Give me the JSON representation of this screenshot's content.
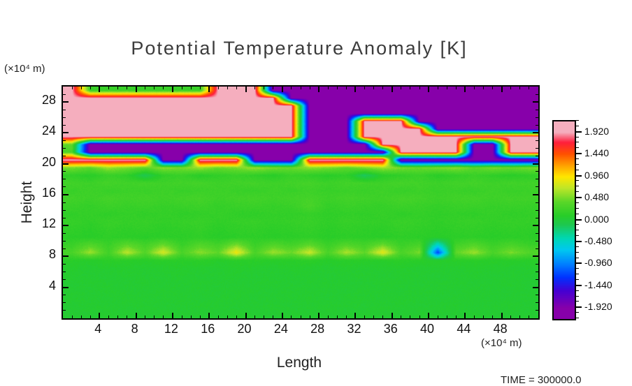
{
  "title": "Potential Temperature Anomaly [K]",
  "time_label": "TIME = 300000.0",
  "axes": {
    "x_label": "Length",
    "x_unit": "(×10⁴ m)",
    "y_label": "Height",
    "y_unit": "(×10⁴ m)",
    "x_ticks": [
      4,
      8,
      12,
      16,
      20,
      24,
      28,
      32,
      36,
      40,
      44,
      48
    ],
    "y_ticks": [
      4,
      8,
      12,
      16,
      20,
      24,
      28
    ],
    "x_range": [
      0,
      52
    ],
    "y_range": [
      0,
      30
    ]
  },
  "colorbar": {
    "labels": [
      "1.920",
      "1.440",
      "0.960",
      "0.480",
      "0.000",
      "-0.480",
      "-0.960",
      "-1.440",
      "-1.920"
    ],
    "values": [
      1.92,
      1.44,
      0.96,
      0.48,
      0.0,
      -0.48,
      -0.96,
      -1.44,
      -1.92
    ],
    "bar_range": [
      -2.16,
      2.16
    ]
  },
  "colors": {
    "background": "#ffffff",
    "frame": "#000000",
    "title_text": "#3c3c3c",
    "stops": [
      {
        "v": -1.92,
        "c": "#8700AA"
      },
      {
        "v": -1.55,
        "c": "#4600D2"
      },
      {
        "v": -1.25,
        "c": "#0032FF"
      },
      {
        "v": -0.95,
        "c": "#0082FF"
      },
      {
        "v": -0.65,
        "c": "#00C8F0"
      },
      {
        "v": -0.4,
        "c": "#00D7B4"
      },
      {
        "v": -0.1,
        "c": "#1EC850"
      },
      {
        "v": 0.1,
        "c": "#28CD28"
      },
      {
        "v": 0.4,
        "c": "#5AD728"
      },
      {
        "v": 0.7,
        "c": "#BEE628"
      },
      {
        "v": 0.95,
        "c": "#FFE600"
      },
      {
        "v": 1.2,
        "c": "#FFA000"
      },
      {
        "v": 1.45,
        "c": "#FF5000"
      },
      {
        "v": 1.7,
        "c": "#FF1E3C"
      },
      {
        "v": 1.92,
        "c": "#F5AEBE"
      }
    ]
  },
  "chart_data": {
    "type": "heatmap",
    "title": "Potential Temperature Anomaly [K]",
    "xlabel": "Length (×10⁴ m)",
    "ylabel": "Height (×10⁴ m)",
    "x_range": [
      0,
      52
    ],
    "y_range": [
      0,
      30
    ],
    "value_range": [
      -1.92,
      1.92
    ],
    "legend_position": "right-colorbar",
    "grid_rows_bottom_to_top": true,
    "values": [
      [
        0.05,
        0.04,
        0.06,
        0.05,
        0.04,
        0.06,
        0.05,
        0.05,
        0.04,
        0.06,
        0.05,
        0.04,
        0.06,
        0.05,
        0.05,
        0.04,
        0.06,
        0.05,
        0.04,
        0.06,
        0.05,
        0.04,
        0.06,
        0.05,
        0.04,
        0.05
      ],
      [
        0.04,
        0.06,
        0.05,
        0.04,
        0.06,
        0.04,
        0.05,
        0.06,
        0.05,
        0.04,
        0.05,
        0.06,
        0.04,
        0.05,
        0.06,
        0.05,
        0.04,
        0.06,
        0.05,
        0.04,
        0.05,
        0.06,
        0.04,
        0.05,
        0.06,
        0.04
      ],
      [
        0.06,
        0.05,
        0.04,
        0.06,
        0.05,
        0.05,
        0.06,
        0.04,
        0.05,
        0.06,
        0.04,
        0.05,
        0.05,
        0.06,
        0.04,
        0.05,
        0.06,
        0.04,
        0.06,
        0.05,
        0.04,
        0.05,
        0.06,
        0.04,
        0.05,
        0.05
      ],
      [
        0.05,
        0.04,
        0.06,
        0.05,
        0.04,
        0.06,
        0.05,
        0.05,
        0.04,
        0.06,
        0.05,
        0.04,
        0.06,
        0.05,
        0.05,
        0.04,
        0.06,
        0.05,
        0.04,
        0.06,
        0.05,
        0.04,
        0.06,
        0.05,
        0.04,
        0.05
      ],
      [
        0.04,
        0.06,
        0.05,
        0.04,
        0.06,
        0.04,
        0.05,
        0.06,
        0.05,
        0.04,
        0.05,
        0.06,
        0.04,
        0.05,
        0.06,
        0.05,
        0.04,
        0.06,
        0.05,
        0.04,
        0.05,
        0.06,
        0.04,
        0.05,
        0.06,
        0.04
      ],
      [
        0.06,
        0.05,
        0.04,
        0.06,
        0.05,
        0.05,
        0.06,
        0.04,
        0.05,
        0.06,
        0.04,
        0.05,
        0.05,
        0.06,
        0.04,
        0.05,
        0.06,
        0.04,
        0.06,
        0.05,
        0.04,
        0.05,
        0.06,
        0.04,
        0.05,
        0.05
      ],
      [
        0.07,
        0.05,
        0.06,
        0.07,
        0.05,
        0.06,
        0.07,
        0.06,
        0.05,
        0.07,
        0.06,
        0.05,
        0.07,
        0.06,
        0.05,
        0.07,
        0.05,
        0.06,
        0.07,
        0.05,
        0.06,
        0.05,
        0.07,
        0.06,
        0.05,
        0.06
      ],
      [
        0.1,
        0.08,
        0.12,
        0.1,
        0.09,
        0.11,
        0.1,
        0.12,
        0.08,
        0.1,
        0.11,
        0.09,
        0.1,
        0.12,
        0.08,
        0.11,
        0.1,
        0.09,
        0.12,
        0.1,
        0.08,
        0.1,
        0.11,
        0.09,
        0.1,
        0.1
      ],
      [
        0.3,
        0.6,
        0.25,
        0.7,
        0.35,
        0.8,
        0.3,
        0.55,
        0.4,
        0.9,
        0.3,
        0.6,
        0.45,
        0.75,
        0.3,
        0.65,
        0.4,
        0.85,
        0.3,
        0.5,
        -1.2,
        0.4,
        0.6,
        0.3,
        0.5,
        0.35
      ],
      [
        0.2,
        0.35,
        0.2,
        0.4,
        0.25,
        0.45,
        0.2,
        0.35,
        0.25,
        0.5,
        0.2,
        0.35,
        0.25,
        0.4,
        0.2,
        0.35,
        0.25,
        0.45,
        0.2,
        0.3,
        -0.5,
        0.25,
        0.35,
        0.2,
        0.3,
        0.2
      ],
      [
        0.12,
        0.1,
        0.14,
        0.12,
        0.1,
        0.13,
        0.12,
        0.14,
        0.1,
        0.12,
        0.13,
        0.11,
        0.12,
        0.14,
        0.1,
        0.13,
        0.12,
        0.1,
        0.14,
        0.12,
        0.1,
        0.12,
        0.13,
        0.11,
        0.12,
        0.12
      ],
      [
        0.15,
        0.12,
        0.17,
        0.14,
        0.16,
        0.13,
        0.15,
        0.17,
        0.12,
        0.15,
        0.16,
        0.13,
        0.15,
        0.17,
        0.12,
        0.16,
        0.14,
        0.13,
        0.17,
        0.15,
        0.12,
        0.15,
        0.16,
        0.13,
        0.15,
        0.14
      ],
      [
        0.18,
        0.15,
        0.2,
        0.17,
        0.19,
        0.16,
        0.18,
        0.2,
        0.15,
        0.18,
        0.19,
        0.16,
        0.18,
        0.2,
        0.15,
        0.19,
        0.17,
        0.16,
        0.2,
        0.18,
        0.15,
        0.18,
        0.19,
        0.16,
        0.18,
        0.17
      ],
      [
        0.15,
        0.18,
        0.14,
        0.17,
        0.15,
        0.18,
        0.14,
        0.16,
        0.18,
        0.15,
        0.14,
        0.17,
        0.15,
        0.18,
        0.14,
        0.16,
        0.15,
        0.18,
        0.14,
        0.17,
        0.15,
        0.16,
        0.14,
        0.18,
        0.15,
        0.16
      ],
      [
        0.2,
        0.17,
        0.22,
        0.19,
        0.21,
        0.18,
        0.2,
        0.22,
        0.17,
        0.2,
        0.21,
        0.18,
        0.2,
        0.3,
        0.17,
        0.21,
        0.19,
        0.18,
        0.22,
        0.2,
        0.17,
        0.2,
        0.21,
        0.18,
        0.2,
        0.19
      ],
      [
        0.25,
        0.22,
        0.27,
        0.24,
        0.26,
        0.23,
        0.25,
        0.27,
        0.22,
        0.25,
        0.26,
        0.23,
        0.25,
        0.27,
        0.22,
        0.26,
        0.24,
        0.23,
        0.27,
        0.25,
        0.22,
        0.25,
        0.26,
        0.23,
        0.25,
        0.24
      ],
      [
        0.2,
        0.23,
        0.19,
        0.22,
        0.2,
        0.23,
        0.19,
        0.21,
        0.23,
        0.2,
        0.19,
        0.22,
        0.2,
        0.23,
        0.19,
        0.21,
        0.2,
        0.23,
        0.19,
        0.22,
        0.2,
        0.21,
        0.19,
        0.23,
        0.2,
        0.21
      ],
      [
        0.25,
        0.22,
        0.27,
        0.24,
        0.26,
        0.23,
        0.25,
        0.27,
        0.22,
        0.25,
        0.26,
        0.23,
        0.25,
        0.27,
        0.22,
        0.26,
        0.24,
        0.23,
        0.27,
        0.25,
        0.22,
        0.25,
        0.26,
        0.23,
        0.25,
        0.24
      ],
      [
        0.15,
        0.1,
        0.2,
        0.15,
        -0.1,
        0.15,
        0.2,
        0.1,
        0.15,
        0.2,
        0.15,
        0.1,
        0.2,
        0.15,
        0.1,
        0.15,
        -0.15,
        0.1,
        0.15,
        0.2,
        0.1,
        0.15,
        0.2,
        0.15,
        0.1,
        0.15
      ],
      [
        0.5,
        0.4,
        0.6,
        0.5,
        0.4,
        0.55,
        0.5,
        0.6,
        0.45,
        0.5,
        0.6,
        0.5,
        0.45,
        0.55,
        0.5,
        0.4,
        0.5,
        0.6,
        0.5,
        0.45,
        0.5,
        0.55,
        0.4,
        0.5,
        0.45,
        0.5
      ],
      [
        1.95,
        1.95,
        1.95,
        1.95,
        1.95,
        -1.95,
        -1.95,
        1.95,
        1.95,
        1.95,
        -1.95,
        -1.95,
        -1.95,
        1.95,
        1.95,
        1.95,
        1.95,
        1.95,
        -1.95,
        -1.95,
        -1.95,
        -1.95,
        -1.95,
        -1.95,
        -1.95,
        -1.95
      ],
      [
        0.3,
        -1.95,
        -1.95,
        -1.95,
        -1.95,
        -1.95,
        -1.95,
        -1.95,
        -1.95,
        -1.95,
        -1.95,
        -1.95,
        -1.95,
        -1.95,
        -1.95,
        -1.95,
        -1.95,
        -1.95,
        1.95,
        1.95,
        1.95,
        1.95,
        -1.95,
        -1.95,
        1.95,
        1.95
      ],
      [
        0.4,
        -1.95,
        -1.95,
        -1.95,
        -1.95,
        -1.95,
        -1.95,
        -1.95,
        -1.95,
        -1.95,
        -1.95,
        -1.95,
        -1.95,
        -1.95,
        -1.95,
        -1.95,
        -1.95,
        1.95,
        1.95,
        1.95,
        1.95,
        1.95,
        -1.95,
        -1.95,
        1.95,
        1.95
      ],
      [
        1.95,
        1.95,
        1.95,
        1.95,
        1.95,
        1.95,
        1.95,
        1.95,
        1.95,
        1.95,
        1.95,
        1.95,
        1.95,
        -1.95,
        -1.95,
        -1.95,
        1.95,
        1.95,
        1.95,
        1.95,
        1.95,
        1.95,
        1.95,
        1.95,
        1.95,
        1.95
      ],
      [
        1.95,
        1.95,
        1.95,
        1.95,
        1.95,
        1.95,
        1.95,
        1.95,
        1.95,
        1.95,
        1.95,
        1.95,
        1.95,
        -1.95,
        -1.95,
        -1.95,
        1.95,
        1.95,
        1.95,
        1.95,
        -1.95,
        -1.95,
        -1.95,
        -1.95,
        -1.95,
        -1.95
      ],
      [
        1.95,
        1.95,
        1.95,
        1.95,
        1.95,
        1.95,
        1.95,
        1.95,
        1.95,
        1.95,
        1.95,
        1.95,
        1.95,
        -1.95,
        -1.95,
        -1.95,
        1.95,
        1.95,
        1.95,
        -1.95,
        -1.95,
        -1.95,
        -1.95,
        -1.95,
        -1.95,
        -1.95
      ],
      [
        1.95,
        1.95,
        1.95,
        1.95,
        1.95,
        1.95,
        1.95,
        1.95,
        1.95,
        1.95,
        1.95,
        1.95,
        1.95,
        -1.95,
        -1.95,
        -1.95,
        -1.95,
        -1.95,
        -1.95,
        -1.95,
        -1.95,
        -1.95,
        -1.95,
        -1.95,
        -1.95,
        -1.95
      ],
      [
        1.95,
        1.95,
        1.95,
        1.95,
        1.95,
        1.95,
        1.95,
        1.95,
        1.95,
        1.95,
        1.95,
        1.95,
        1.95,
        -1.95,
        -1.95,
        -1.95,
        -1.95,
        -1.95,
        -1.95,
        -1.95,
        -1.95,
        -1.95,
        -1.95,
        -1.95,
        -1.95,
        -1.95
      ],
      [
        1.95,
        1.95,
        1.95,
        1.95,
        1.95,
        1.95,
        1.95,
        1.95,
        1.95,
        1.95,
        1.95,
        1.95,
        -1.95,
        -1.95,
        -1.95,
        -1.95,
        -1.95,
        -1.95,
        -1.95,
        -1.95,
        -1.95,
        -1.95,
        -1.95,
        -1.95,
        -1.95,
        -1.95
      ],
      [
        1.95,
        0.2,
        0.2,
        0.2,
        0.2,
        0.2,
        0.2,
        0.2,
        1.95,
        1.95,
        1.95,
        -1.95,
        -1.95,
        -1.95,
        -1.95,
        -1.95,
        -1.95,
        -1.95,
        -1.95,
        -1.95,
        -1.95,
        -1.95,
        -1.95,
        -1.95,
        -1.95,
        -1.95
      ]
    ]
  }
}
